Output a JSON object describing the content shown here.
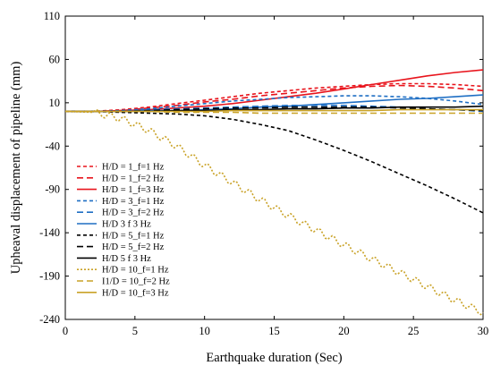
{
  "chart_data": {
    "type": "line",
    "title": "",
    "xlabel": "Earthquake duration (Sec)",
    "ylabel": "Upheaval displacement of pipeline (mm)",
    "xlim": [
      0,
      30
    ],
    "ylim": [
      -240,
      110
    ],
    "xticks": [
      0,
      5,
      10,
      15,
      20,
      25,
      30
    ],
    "yticks": [
      110,
      60,
      10,
      -40,
      -90,
      -140,
      -190,
      -240
    ],
    "grid": false,
    "legend_position": "lower-left",
    "series": [
      {
        "name": "H/D = 1_f=1 Hz",
        "color": "#e8141c",
        "dash": "dashed",
        "x": [
          0,
          2,
          4,
          6,
          8,
          10,
          12,
          14,
          16,
          18,
          20,
          22,
          24,
          26,
          28,
          30
        ],
        "y": [
          0,
          0,
          2,
          5,
          9,
          13,
          17,
          21,
          24,
          27,
          29,
          31,
          32,
          32,
          31,
          29
        ]
      },
      {
        "name": "H/D = 1_f=2 Hz",
        "color": "#e8141c",
        "dash": "dashed-long",
        "x": [
          0,
          2,
          4,
          6,
          8,
          10,
          12,
          14,
          16,
          18,
          20,
          22,
          24,
          26,
          28,
          30
        ],
        "y": [
          0,
          0,
          1,
          4,
          7,
          11,
          14,
          18,
          21,
          24,
          27,
          29,
          30,
          29,
          27,
          24
        ]
      },
      {
        "name": "H/D = 1_f=3 Hz",
        "color": "#e8141c",
        "dash": "solid",
        "x": [
          0,
          2,
          4,
          6,
          8,
          10,
          12,
          14,
          16,
          18,
          20,
          22,
          24,
          26,
          28,
          30
        ],
        "y": [
          0,
          0,
          1,
          2,
          4,
          6,
          9,
          13,
          17,
          21,
          26,
          31,
          36,
          41,
          45,
          48
        ]
      },
      {
        "name": "H/D = 3_f=1 Hz",
        "color": "#1f6fc4",
        "dash": "dashed",
        "x": [
          0,
          2,
          4,
          6,
          8,
          10,
          12,
          14,
          16,
          18,
          20,
          22,
          24,
          26,
          28,
          30
        ],
        "y": [
          0,
          0,
          1,
          3,
          6,
          9,
          12,
          14,
          16,
          17,
          18,
          18,
          17,
          15,
          12,
          8
        ]
      },
      {
        "name": "H/D = 3_f=2 Hz",
        "color": "#1f6fc4",
        "dash": "dashed-long",
        "x": [
          0,
          2,
          4,
          6,
          8,
          10,
          12,
          14,
          16,
          18,
          20,
          22,
          24,
          26,
          28,
          30
        ],
        "y": [
          0,
          0,
          0,
          2,
          3,
          4,
          5,
          6,
          7,
          7,
          7,
          6,
          5,
          3,
          2,
          0
        ]
      },
      {
        "name": "H/D   3   f  3 Hz",
        "color": "#1f6fc4",
        "dash": "solid",
        "x": [
          0,
          2,
          4,
          6,
          8,
          10,
          12,
          14,
          16,
          18,
          20,
          22,
          24,
          26,
          28,
          30
        ],
        "y": [
          0,
          0,
          0,
          1,
          1,
          2,
          3,
          5,
          6,
          8,
          10,
          12,
          14,
          15,
          17,
          19
        ]
      },
      {
        "name": "H/D = 5_f=1 Hz",
        "color": "#000000",
        "dash": "dashed",
        "x": [
          0,
          2,
          4,
          6,
          8,
          10,
          12,
          14,
          16,
          18,
          20,
          22,
          24,
          26,
          28,
          30
        ],
        "y": [
          0,
          0,
          -1,
          -2,
          -3,
          -5,
          -9,
          -15,
          -22,
          -33,
          -45,
          -58,
          -72,
          -86,
          -101,
          -117
        ]
      },
      {
        "name": "H/D = 5_f=2 Hz",
        "color": "#000000",
        "dash": "dashed-long",
        "x": [
          0,
          2,
          4,
          6,
          8,
          10,
          12,
          14,
          16,
          18,
          20,
          22,
          24,
          26,
          28,
          30
        ],
        "y": [
          0,
          0,
          0,
          1,
          2,
          3,
          4,
          4,
          5,
          5,
          5,
          5,
          4,
          3,
          2,
          1
        ]
      },
      {
        "name": "H/D   5   f  3 Hz",
        "color": "#000000",
        "dash": "solid",
        "x": [
          0,
          2,
          4,
          6,
          8,
          10,
          12,
          14,
          16,
          18,
          20,
          22,
          24,
          26,
          28,
          30
        ],
        "y": [
          0,
          0,
          0,
          0,
          1,
          1,
          2,
          2,
          3,
          3,
          4,
          4,
          5,
          5,
          5,
          6
        ]
      },
      {
        "name": "H/D = 10_f=1 Hz",
        "color": "#c9a227",
        "dash": "dotted",
        "x": [
          0,
          2,
          4,
          6,
          8,
          10,
          12,
          14,
          16,
          18,
          20,
          22,
          24,
          26,
          28,
          30
        ],
        "y": [
          0,
          -1,
          -8,
          -22,
          -40,
          -62,
          -82,
          -102,
          -120,
          -137,
          -154,
          -170,
          -186,
          -202,
          -218,
          -232
        ]
      },
      {
        "name": "I1/D = 10_f=2 Hz",
        "color": "#c9a227",
        "dash": "dashed-long",
        "x": [
          0,
          2,
          4,
          6,
          8,
          10,
          12,
          14,
          16,
          18,
          20,
          22,
          24,
          26,
          28,
          30
        ],
        "y": [
          0,
          0,
          0,
          0,
          -1,
          -1,
          -1,
          -2,
          -2,
          -2,
          -2,
          -2,
          -2,
          -2,
          -2,
          -2
        ]
      },
      {
        "name": "H/D = 10_f=3 Hz",
        "color": "#c9a227",
        "dash": "solid",
        "x": [
          0,
          2,
          4,
          6,
          8,
          10,
          12,
          14,
          16,
          18,
          20,
          22,
          24,
          26,
          28,
          30
        ],
        "y": [
          0,
          0,
          0,
          0,
          0,
          0,
          1,
          1,
          1,
          1,
          1,
          1,
          2,
          2,
          2,
          2
        ]
      }
    ]
  },
  "extra_series_blue_cascade": {
    "note_free": true
  }
}
